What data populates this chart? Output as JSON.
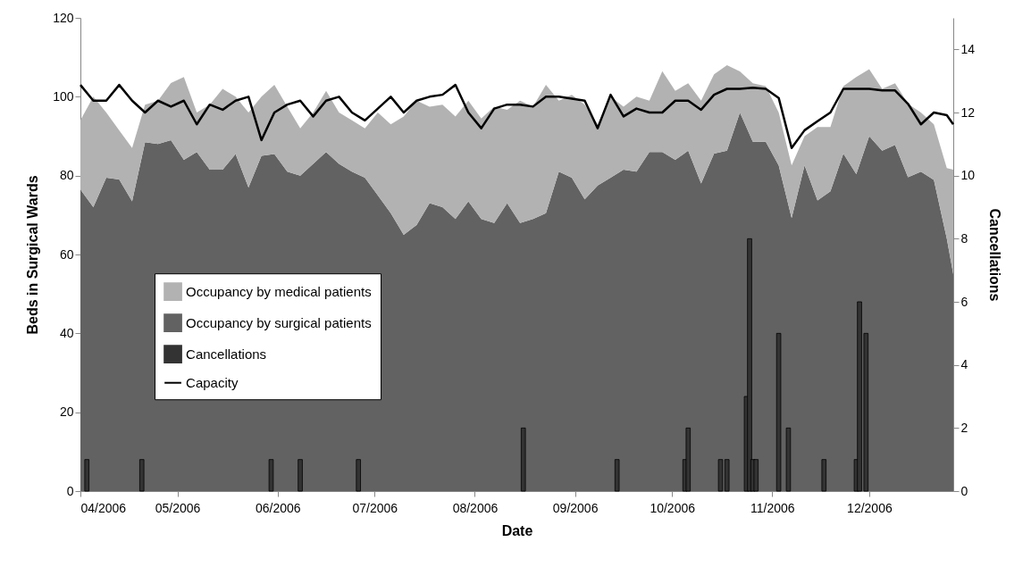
{
  "chart_data": {
    "type": "area",
    "stacked": true,
    "xlabel": "Date",
    "ylabel": "Beds in Surgical Wards",
    "y2label": "Cancellations",
    "x": [
      "2006-04-01",
      "2006-04-05",
      "2006-04-09",
      "2006-04-13",
      "2006-04-17",
      "2006-04-21",
      "2006-04-25",
      "2006-04-29",
      "2006-05-03",
      "2006-05-07",
      "2006-05-11",
      "2006-05-15",
      "2006-05-19",
      "2006-05-23",
      "2006-05-27",
      "2006-05-31",
      "2006-06-04",
      "2006-06-08",
      "2006-06-12",
      "2006-06-16",
      "2006-06-20",
      "2006-06-24",
      "2006-06-28",
      "2006-07-02",
      "2006-07-06",
      "2006-07-10",
      "2006-07-14",
      "2006-07-18",
      "2006-07-22",
      "2006-07-26",
      "2006-07-30",
      "2006-08-03",
      "2006-08-07",
      "2006-08-11",
      "2006-08-15",
      "2006-08-19",
      "2006-08-23",
      "2006-08-27",
      "2006-08-31",
      "2006-09-04",
      "2006-09-08",
      "2006-09-12",
      "2006-09-16",
      "2006-09-20",
      "2006-09-24",
      "2006-09-28",
      "2006-10-02",
      "2006-10-06",
      "2006-10-10",
      "2006-10-14",
      "2006-10-18",
      "2006-10-22",
      "2006-10-26",
      "2006-10-30",
      "2006-11-03",
      "2006-11-07",
      "2006-11-11",
      "2006-11-15",
      "2006-11-19",
      "2006-11-23",
      "2006-11-27",
      "2006-12-01",
      "2006-12-05",
      "2006-12-09",
      "2006-12-13",
      "2006-12-17",
      "2006-12-21",
      "2006-12-25",
      "2006-12-27"
    ],
    "series": [
      {
        "name": "Occupancy by surgical patients",
        "color": "#626262",
        "values": [
          76.5,
          72,
          79.5,
          79,
          73.5,
          88.5,
          88,
          89,
          84,
          86,
          81.5,
          81.5,
          85.5,
          77,
          85,
          85.5,
          81,
          80,
          83,
          86,
          83,
          81,
          79.5,
          75,
          70.5,
          65,
          67.5,
          73,
          72,
          69,
          73.5,
          69,
          68,
          73,
          68,
          69,
          70.5,
          81,
          79.5,
          74,
          77.5,
          79.5,
          81.5,
          81,
          86,
          86,
          84,
          86.3,
          78,
          85.6,
          86.3,
          96,
          88.6,
          88.6,
          82.6,
          69.2,
          82.6,
          73.7,
          76,
          85.6,
          80.4,
          90,
          86.3,
          87.8,
          79.6,
          81,
          78.9,
          64,
          55
        ]
      },
      {
        "name": "Occupancy by medical patients",
        "color": "#b2b2b2",
        "values": [
          17.5,
          28,
          16.5,
          12.5,
          13.5,
          9.5,
          11,
          14.5,
          21,
          10,
          16.5,
          20.5,
          14.5,
          19,
          15,
          17.5,
          16.5,
          12,
          13,
          15.5,
          13,
          13,
          12.5,
          21,
          22.5,
          30,
          31.5,
          24.5,
          26,
          26,
          25.5,
          25.5,
          29.5,
          23.7,
          31,
          28.5,
          32.5,
          18,
          21,
          24,
          15.5,
          20.5,
          16,
          19,
          13,
          20.5,
          17.5,
          17.1,
          21,
          20.1,
          21.7,
          10.4,
          14.8,
          14.1,
          13.4,
          13.4,
          7.4,
          18.6,
          16.3,
          17.1,
          24.6,
          17,
          15.7,
          15.6,
          18.6,
          15,
          14.1,
          17.9,
          26.5
        ]
      },
      {
        "name": "Cancellations",
        "type": "bar",
        "axis": "y2",
        "color": "#333333",
        "x": [
          "2006-04-03",
          "2006-04-20",
          "2006-05-30",
          "2006-06-08",
          "2006-06-26",
          "2006-08-16",
          "2006-09-14",
          "2006-10-05",
          "2006-10-06",
          "2006-10-16",
          "2006-10-18",
          "2006-10-24",
          "2006-10-25",
          "2006-10-26",
          "2006-10-27",
          "2006-11-03",
          "2006-11-06",
          "2006-11-17",
          "2006-11-27",
          "2006-11-28",
          "2006-11-30"
        ],
        "values": [
          1,
          1,
          1,
          1,
          1,
          2,
          1,
          1,
          2,
          1,
          1,
          3,
          8,
          1,
          1,
          5,
          2,
          1,
          1,
          6,
          5
        ]
      },
      {
        "name": "Capacity",
        "type": "line",
        "color": "#000000",
        "values": [
          103,
          99,
          99,
          103,
          99,
          96,
          99,
          97.5,
          99,
          93,
          98,
          96.7,
          99,
          100,
          89,
          96,
          98,
          99,
          95,
          99,
          100,
          96,
          94,
          97,
          100,
          96,
          99,
          100,
          100.5,
          103,
          96,
          92,
          97,
          98,
          98,
          97.5,
          100,
          100,
          99.5,
          99,
          92,
          100.5,
          95,
          97,
          96,
          96,
          99,
          99,
          96.7,
          100.5,
          102,
          102,
          102.3,
          102,
          99.7,
          87,
          91.5,
          93.8,
          96,
          102,
          102,
          102,
          101.6,
          101.6,
          98.2,
          93,
          96,
          95.3,
          93
        ]
      }
    ],
    "xlim": [
      "2006-04-01",
      "2006-12-27"
    ],
    "xticks": [
      {
        "value": "2006-04-01",
        "label": "04/2006"
      },
      {
        "value": "2006-05-01",
        "label": "05/2006"
      },
      {
        "value": "2006-06-01",
        "label": "06/2006"
      },
      {
        "value": "2006-07-01",
        "label": "07/2006"
      },
      {
        "value": "2006-08-01",
        "label": "08/2006"
      },
      {
        "value": "2006-09-01",
        "label": "09/2006"
      },
      {
        "value": "2006-10-01",
        "label": "10/2006"
      },
      {
        "value": "2006-11-01",
        "label": "11/2006"
      },
      {
        "value": "2006-12-01",
        "label": "12/2006"
      }
    ],
    "ylim": [
      0,
      120
    ],
    "yticks": [
      0,
      20,
      40,
      60,
      80,
      100,
      120
    ],
    "y2lim": [
      0,
      15
    ],
    "y2ticks": [
      0,
      2,
      4,
      6,
      8,
      10,
      12,
      14
    ],
    "legend": "left",
    "line_style": "solid",
    "marker": "none",
    "grid": false
  }
}
